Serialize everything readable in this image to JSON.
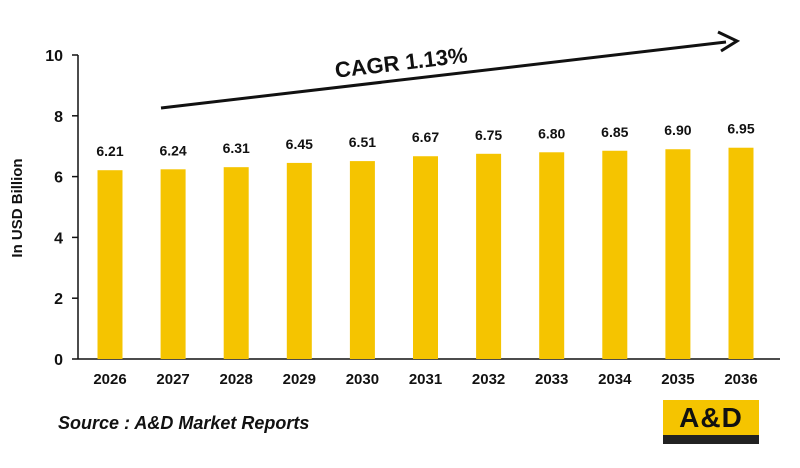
{
  "chart_data": {
    "type": "bar",
    "title": "",
    "xlabel": "",
    "ylabel": "In USD Billion",
    "categories": [
      "2026",
      "2027",
      "2028",
      "2029",
      "2030",
      "2031",
      "2032",
      "2033",
      "2034",
      "2035",
      "2036"
    ],
    "values": [
      6.21,
      6.24,
      6.31,
      6.45,
      6.51,
      6.67,
      6.75,
      6.8,
      6.85,
      6.9,
      6.95
    ],
    "data_labels": [
      "6.21",
      "6.24",
      "6.31",
      "6.45",
      "6.51",
      "6.67",
      "6.75",
      "6.80",
      "6.85",
      "6.90",
      "6.95"
    ],
    "ylim": [
      0,
      10
    ],
    "yticks": [
      0,
      2,
      4,
      6,
      8,
      10
    ],
    "grid": false,
    "bar_color": "#f5c400",
    "annotation": "CAGR 1.13%"
  },
  "footer": {
    "source": "Source : A&D Market Reports",
    "logo_text": "A&D"
  }
}
